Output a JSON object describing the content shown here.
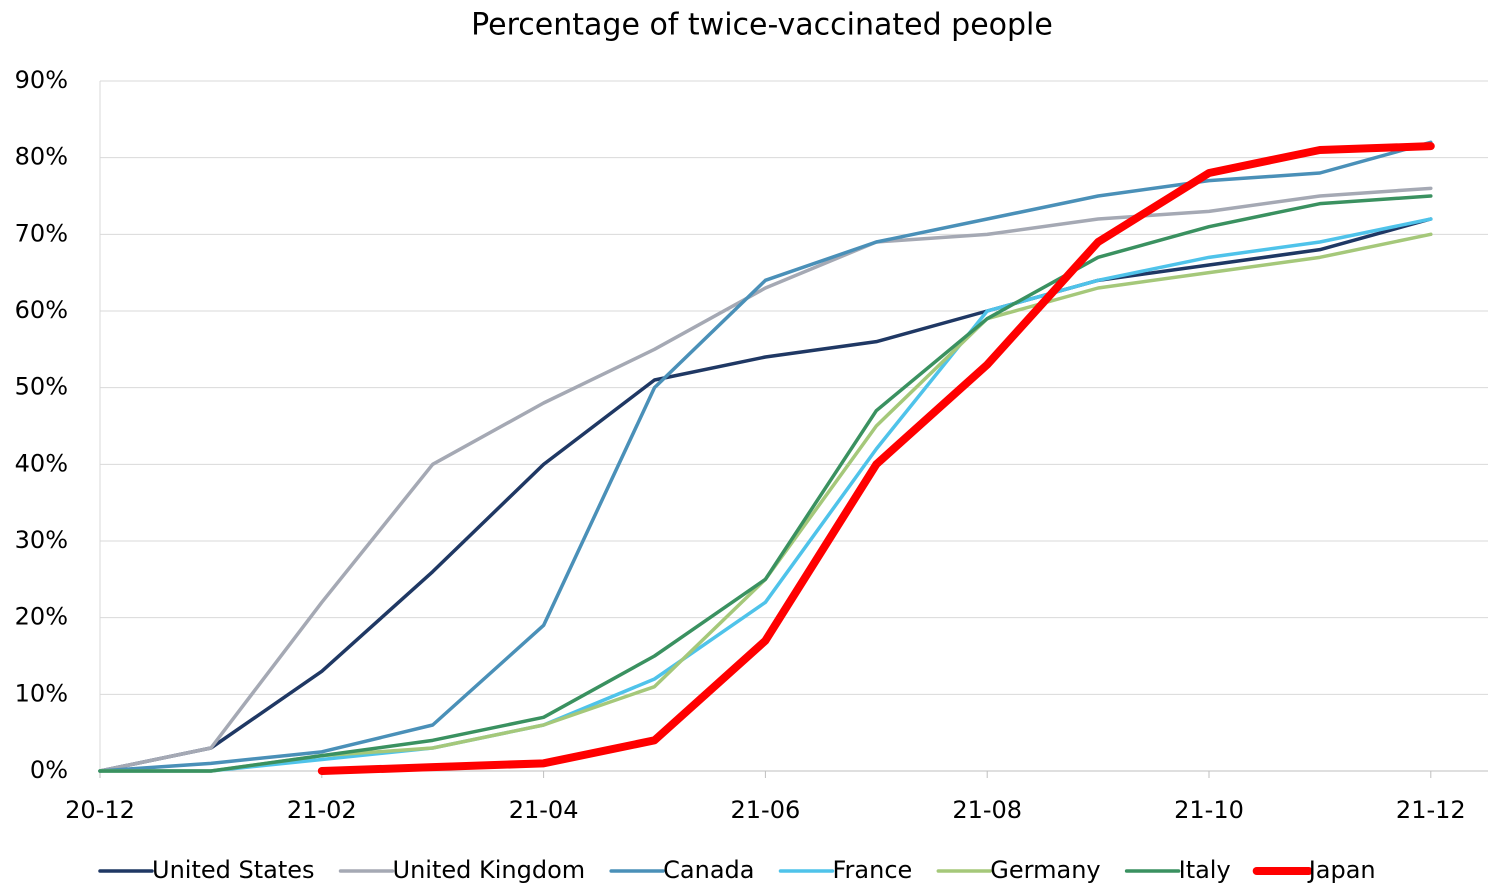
{
  "chart_data": {
    "type": "line",
    "title": "Percentage of twice-vaccinated people",
    "x": [
      "20-12",
      null,
      "21-02",
      null,
      "21-04",
      null,
      "21-06",
      null,
      "21-08",
      null,
      "21-10",
      null,
      "21-12"
    ],
    "ylim": [
      0,
      90
    ],
    "yticks": [
      {
        "value": 0,
        "label": "0%"
      },
      {
        "value": 10,
        "label": "10%"
      },
      {
        "value": 20,
        "label": "20%"
      },
      {
        "value": 30,
        "label": "30%"
      },
      {
        "value": 40,
        "label": "40%"
      },
      {
        "value": 50,
        "label": "50%"
      },
      {
        "value": 60,
        "label": "60%"
      },
      {
        "value": 70,
        "label": "70%"
      },
      {
        "value": 80,
        "label": "80%"
      },
      {
        "value": 90,
        "label": "90%"
      }
    ],
    "grid": true,
    "legend": "bottom",
    "series": [
      {
        "name": "United States",
        "color": "#1f3864",
        "values": [
          0,
          3,
          13,
          26,
          40,
          51,
          54,
          56,
          60,
          64,
          66,
          68,
          72
        ]
      },
      {
        "name": "United Kingdom",
        "color": "#a5a9b4",
        "values": [
          0,
          3,
          22,
          40,
          48,
          55,
          63,
          69,
          70,
          72,
          73,
          75,
          76
        ]
      },
      {
        "name": "Canada",
        "color": "#4a90b8",
        "values": [
          0,
          1,
          2.5,
          6,
          19,
          50,
          64,
          69,
          72,
          75,
          77,
          78,
          82
        ]
      },
      {
        "name": "France",
        "color": "#4fc3ea",
        "values": [
          0,
          0,
          1.5,
          3,
          6,
          12,
          22,
          42,
          60,
          64,
          67,
          69,
          72
        ]
      },
      {
        "name": "Germany",
        "color": "#a5c87a",
        "values": [
          0,
          0,
          2,
          3,
          6,
          11,
          25,
          45,
          59,
          63,
          65,
          67,
          70
        ]
      },
      {
        "name": "Italy",
        "color": "#3a9160",
        "values": [
          0,
          0,
          2,
          4,
          7,
          15,
          25,
          47,
          59,
          67,
          71,
          74,
          75
        ]
      },
      {
        "name": "Japan",
        "color": "#ff0000",
        "values": [
          null,
          null,
          0,
          0.5,
          1,
          4,
          17,
          40,
          53,
          69,
          78,
          81,
          81.5
        ]
      }
    ]
  }
}
